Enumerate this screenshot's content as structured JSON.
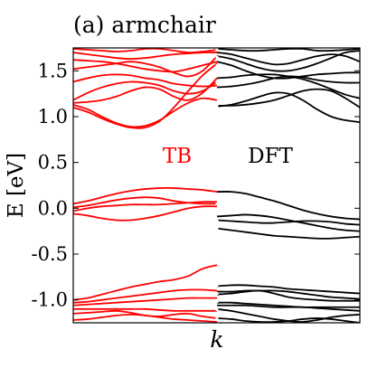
{
  "chart_data": {
    "type": "line",
    "title": "(a) armchair",
    "xlabel": "k",
    "ylabel": "E [eV]",
    "ylim": [
      -1.25,
      1.75
    ],
    "yticks": [
      1.5,
      1.0,
      0.5,
      0.0,
      -0.5,
      -1.0
    ],
    "ytick_labels": [
      "1.5",
      "1.0",
      "0.5",
      "0.0",
      "-0.5",
      "-1.0"
    ],
    "x": [
      0,
      0.1,
      0.2,
      0.3,
      0.4,
      0.5,
      0.6,
      0.7,
      0.8,
      0.9,
      1.0
    ],
    "panels": [
      {
        "label": "TB",
        "color": "#ff0000",
        "series": [
          {
            "values": [
              1.74,
              1.73,
              1.72,
              1.71,
              1.72,
              1.74,
              1.74,
              1.72,
              1.7,
              1.71,
              1.73
            ]
          },
          {
            "values": [
              1.7,
              1.68,
              1.66,
              1.64,
              1.63,
              1.64,
              1.66,
              1.68,
              1.69,
              1.7,
              1.7
            ]
          },
          {
            "values": [
              1.62,
              1.61,
              1.6,
              1.58,
              1.55,
              1.52,
              1.5,
              1.49,
              1.52,
              1.56,
              1.6
            ]
          },
          {
            "values": [
              1.52,
              1.54,
              1.56,
              1.58,
              1.6,
              1.58,
              1.54,
              1.48,
              1.44,
              1.5,
              1.66
            ]
          },
          {
            "values": [
              1.38,
              1.42,
              1.45,
              1.46,
              1.45,
              1.42,
              1.4,
              1.36,
              1.34,
              1.33,
              1.34
            ]
          },
          {
            "values": [
              1.18,
              1.26,
              1.32,
              1.36,
              1.38,
              1.37,
              1.34,
              1.28,
              1.25,
              1.28,
              1.38
            ]
          },
          {
            "values": [
              1.1,
              1.05,
              0.98,
              0.92,
              0.88,
              0.88,
              0.95,
              1.1,
              1.28,
              1.45,
              1.58
            ]
          },
          {
            "values": [
              1.13,
              1.08,
              1.0,
              0.93,
              0.89,
              0.9,
              0.96,
              1.06,
              1.15,
              1.2,
              1.18
            ]
          },
          {
            "values": [
              1.15,
              1.16,
              1.18,
              1.22,
              1.28,
              1.32,
              1.3,
              1.22,
              1.18,
              1.26,
              1.42
            ]
          },
          {
            "values": [
              0.05,
              0.08,
              0.12,
              0.16,
              0.19,
              0.21,
              0.22,
              0.22,
              0.21,
              0.2,
              0.18
            ]
          },
          {
            "values": [
              0.01,
              0.03,
              0.06,
              0.09,
              0.11,
              0.12,
              0.11,
              0.08,
              0.06,
              0.05,
              0.05
            ]
          },
          {
            "values": [
              -0.03,
              0.0,
              0.02,
              0.03,
              0.04,
              0.04,
              0.04,
              0.05,
              0.06,
              0.07,
              0.07
            ]
          },
          {
            "values": [
              -0.06,
              -0.08,
              -0.11,
              -0.13,
              -0.13,
              -0.11,
              -0.08,
              -0.04,
              0.0,
              0.02,
              0.02
            ]
          },
          {
            "values": [
              -1.0,
              -0.98,
              -0.94,
              -0.9,
              -0.86,
              -0.83,
              -0.8,
              -0.78,
              -0.74,
              -0.66,
              -0.62
            ]
          },
          {
            "values": [
              -1.03,
              -1.02,
              -1.0,
              -0.98,
              -0.96,
              -0.94,
              -0.92,
              -0.9,
              -0.89,
              -0.89,
              -0.9
            ]
          },
          {
            "values": [
              -1.06,
              -1.05,
              -1.04,
              -1.03,
              -1.02,
              -1.01,
              -1.0,
              -0.99,
              -0.98,
              -0.98,
              -0.98
            ]
          },
          {
            "values": [
              -1.1,
              -1.1,
              -1.1,
              -1.1,
              -1.1,
              -1.1,
              -1.11,
              -1.12,
              -1.12,
              -1.12,
              -1.12
            ]
          },
          {
            "values": [
              -1.15,
              -1.14,
              -1.13,
              -1.12,
              -1.14,
              -1.17,
              -1.18,
              -1.16,
              -1.15,
              -1.18,
              -1.2
            ]
          },
          {
            "values": [
              -1.22,
              -1.21,
              -1.19,
              -1.17,
              -1.16,
              -1.17,
              -1.19,
              -1.21,
              -1.22,
              -1.23,
              -1.24
            ]
          }
        ]
      },
      {
        "label": "DFT",
        "color": "#000000",
        "series": [
          {
            "values": [
              1.74,
              1.73,
              1.72,
              1.72,
              1.73,
              1.74,
              1.74,
              1.72,
              1.72,
              1.73,
              1.74
            ]
          },
          {
            "values": [
              1.7,
              1.68,
              1.64,
              1.6,
              1.57,
              1.58,
              1.62,
              1.66,
              1.68,
              1.66,
              1.6
            ]
          },
          {
            "values": [
              1.66,
              1.63,
              1.58,
              1.53,
              1.5,
              1.5,
              1.53,
              1.58,
              1.64,
              1.7,
              1.72
            ]
          },
          {
            "values": [
              1.6,
              1.56,
              1.5,
              1.45,
              1.42,
              1.42,
              1.44,
              1.46,
              1.47,
              1.48,
              1.48
            ]
          },
          {
            "values": [
              1.42,
              1.43,
              1.45,
              1.46,
              1.46,
              1.44,
              1.41,
              1.36,
              1.3,
              1.24,
              1.2
            ]
          },
          {
            "values": [
              1.32,
              1.33,
              1.35,
              1.38,
              1.42,
              1.44,
              1.43,
              1.4,
              1.38,
              1.37,
              1.37
            ]
          },
          {
            "values": [
              1.12,
              1.12,
              1.13,
              1.15,
              1.18,
              1.23,
              1.28,
              1.3,
              1.28,
              1.2,
              1.1
            ]
          },
          {
            "values": [
              1.11,
              1.13,
              1.17,
              1.22,
              1.26,
              1.25,
              1.18,
              1.08,
              1.0,
              0.96,
              0.94
            ]
          },
          {
            "values": [
              0.18,
              0.18,
              0.16,
              0.12,
              0.08,
              0.03,
              -0.02,
              -0.06,
              -0.09,
              -0.11,
              -0.12
            ]
          },
          {
            "values": [
              -0.09,
              -0.08,
              -0.07,
              -0.08,
              -0.1,
              -0.13,
              -0.16,
              -0.19,
              -0.22,
              -0.24,
              -0.25
            ]
          },
          {
            "values": [
              -0.13,
              -0.14,
              -0.15,
              -0.16,
              -0.16,
              -0.15,
              -0.14,
              -0.14,
              -0.15,
              -0.17,
              -0.18
            ]
          },
          {
            "values": [
              -0.22,
              -0.24,
              -0.26,
              -0.28,
              -0.3,
              -0.31,
              -0.32,
              -0.33,
              -0.33,
              -0.32,
              -0.31
            ]
          },
          {
            "values": [
              -0.85,
              -0.84,
              -0.84,
              -0.85,
              -0.86,
              -0.88,
              -0.89,
              -0.9,
              -0.91,
              -0.92,
              -0.93
            ]
          },
          {
            "values": [
              -0.91,
              -0.91,
              -0.9,
              -0.9,
              -0.9,
              -0.91,
              -0.93,
              -0.95,
              -0.97,
              -0.98,
              -0.99
            ]
          },
          {
            "values": [
              -0.94,
              -0.93,
              -0.91,
              -0.9,
              -0.93,
              -0.97,
              -0.99,
              -1.0,
              -1.01,
              -1.01,
              -1.01
            ]
          },
          {
            "values": [
              -1.03,
              -1.03,
              -1.04,
              -1.05,
              -1.06,
              -1.07,
              -1.08,
              -1.08,
              -1.08,
              -1.08,
              -1.08
            ]
          },
          {
            "values": [
              -1.06,
              -1.06,
              -1.06,
              -1.07,
              -1.08,
              -1.08,
              -1.08,
              -1.09,
              -1.1,
              -1.11,
              -1.12
            ]
          },
          {
            "values": [
              -1.1,
              -1.12,
              -1.15,
              -1.18,
              -1.21,
              -1.23,
              -1.24,
              -1.22,
              -1.19,
              -1.17,
              -1.16
            ]
          },
          {
            "values": [
              -1.2,
              -1.21,
              -1.23,
              -1.24,
              -1.24,
              -1.23,
              -1.21,
              -1.2,
              -1.21,
              -1.23,
              -1.25
            ]
          }
        ]
      }
    ]
  }
}
